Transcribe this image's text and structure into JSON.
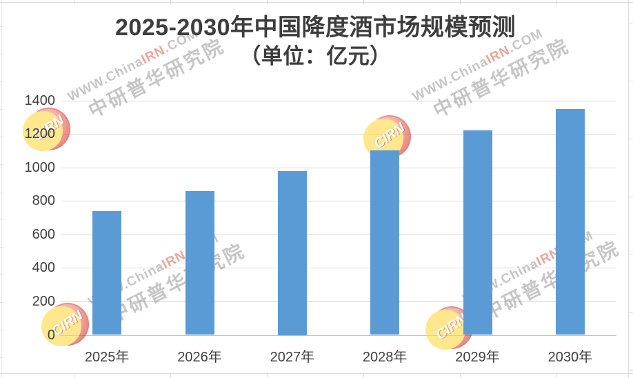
{
  "title": {
    "line1": "2025-2030年中国降度酒市场规模预测",
    "line2": "（单位：亿元）"
  },
  "chart_data": {
    "type": "bar",
    "title": "2025-2030年中国降度酒市场规模预测（单位：亿元）",
    "categories": [
      "2025年",
      "2026年",
      "2027年",
      "2028年",
      "2029年",
      "2030年"
    ],
    "values": [
      740,
      860,
      980,
      1100,
      1220,
      1350
    ],
    "xlabel": "",
    "ylabel": "",
    "ylim": [
      0,
      1400
    ],
    "yticks": [
      0,
      200,
      400,
      600,
      800,
      1000,
      1200,
      1400
    ],
    "grid": true,
    "legend": false,
    "bar_color": "#5b9bd5",
    "gridline_color": "#d9d9d9",
    "label_color": "#404040"
  },
  "watermark": {
    "url_prefix": "WWW.China",
    "url_highlight": "IRN",
    "url_suffix": ".COM",
    "cn_text": "中研普华研究院",
    "logo_text": "CIRN",
    "text_color": "#8f8f8f",
    "highlight_color": "#d94f35",
    "logo_red": "#e03a30",
    "logo_yellow": "#ffd94a"
  }
}
